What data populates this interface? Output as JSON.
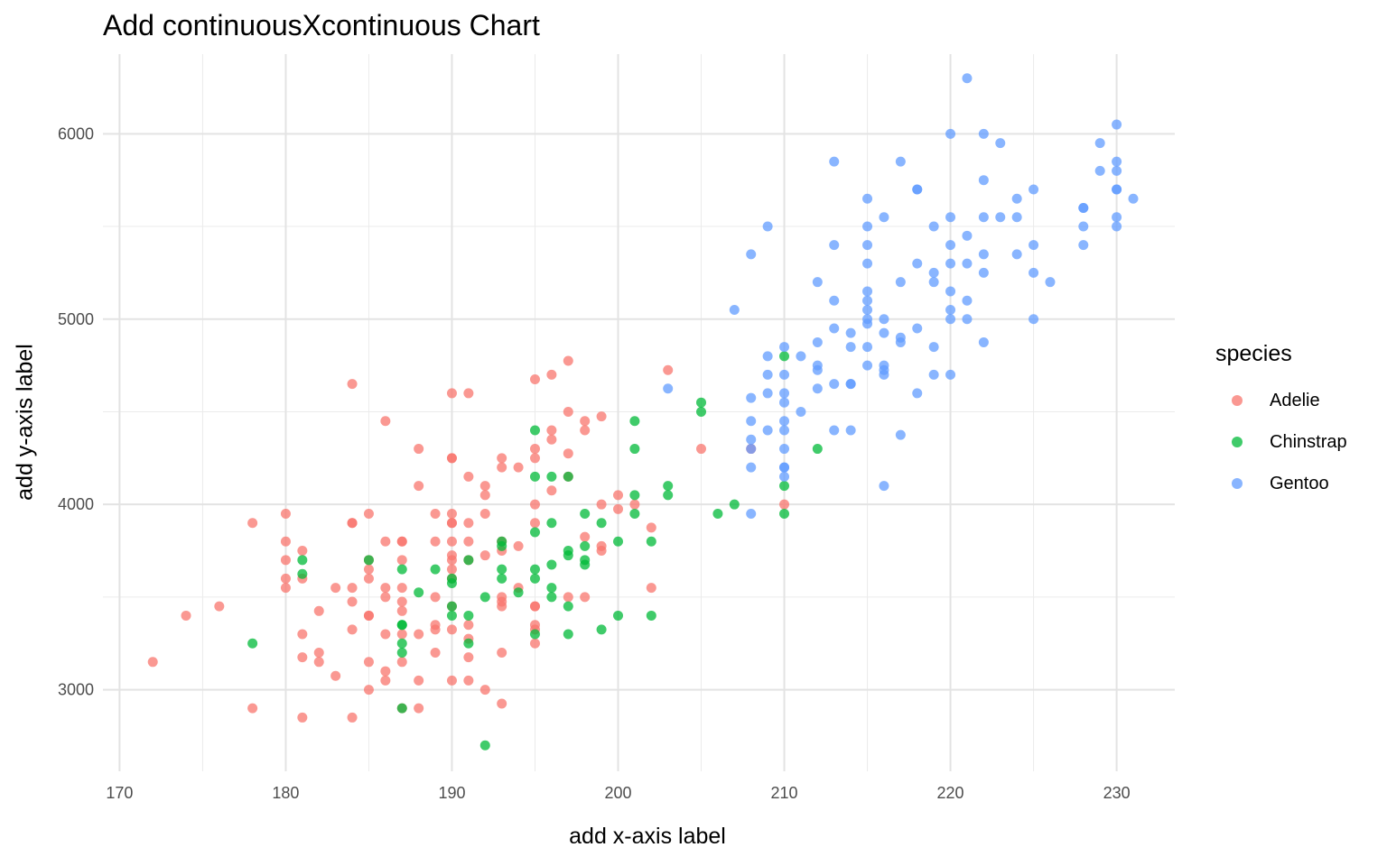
{
  "chart_data": {
    "type": "scatter",
    "title": "Add continuousXcontinuous Chart",
    "xlabel": "add x-axis label",
    "ylabel": "add y-axis label",
    "xlim": [
      169,
      233.5
    ],
    "ylim": [
      2560,
      6430
    ],
    "xticks": [
      170,
      180,
      190,
      200,
      210,
      220,
      230
    ],
    "yticks": [
      3000,
      4000,
      5000,
      6000
    ],
    "grid": true,
    "legend": {
      "title": "species",
      "position": "right"
    },
    "series": [
      {
        "name": "Adelie",
        "color": "#F8766D",
        "points": [
          [
            172,
            3150
          ],
          [
            174,
            3400
          ],
          [
            176,
            3450
          ],
          [
            178,
            3900
          ],
          [
            178,
            2900
          ],
          [
            180,
            3950
          ],
          [
            180,
            3800
          ],
          [
            180,
            3700
          ],
          [
            180,
            3600
          ],
          [
            180,
            3550
          ],
          [
            181,
            3750
          ],
          [
            181,
            3600
          ],
          [
            181,
            3300
          ],
          [
            181,
            3175
          ],
          [
            181,
            2850
          ],
          [
            182,
            3425
          ],
          [
            182,
            3200
          ],
          [
            182,
            3150
          ],
          [
            183,
            3550
          ],
          [
            183,
            3075
          ],
          [
            184,
            4650
          ],
          [
            184,
            3900
          ],
          [
            184,
            3900
          ],
          [
            184,
            3550
          ],
          [
            184,
            3475
          ],
          [
            184,
            3325
          ],
          [
            184,
            2850
          ],
          [
            185,
            3950
          ],
          [
            185,
            3700
          ],
          [
            185,
            3650
          ],
          [
            185,
            3600
          ],
          [
            185,
            3400
          ],
          [
            185,
            3400
          ],
          [
            185,
            3150
          ],
          [
            185,
            3000
          ],
          [
            186,
            4450
          ],
          [
            186,
            3800
          ],
          [
            186,
            3550
          ],
          [
            186,
            3500
          ],
          [
            186,
            3300
          ],
          [
            186,
            3100
          ],
          [
            186,
            3050
          ],
          [
            187,
            3800
          ],
          [
            187,
            3800
          ],
          [
            187,
            3700
          ],
          [
            187,
            3550
          ],
          [
            187,
            3475
          ],
          [
            187,
            3425
          ],
          [
            187,
            3300
          ],
          [
            187,
            3150
          ],
          [
            187,
            2900
          ],
          [
            188,
            4300
          ],
          [
            188,
            4100
          ],
          [
            188,
            3300
          ],
          [
            188,
            3050
          ],
          [
            188,
            2900
          ],
          [
            189,
            3950
          ],
          [
            189,
            3800
          ],
          [
            189,
            3500
          ],
          [
            189,
            3350
          ],
          [
            189,
            3325
          ],
          [
            189,
            3200
          ],
          [
            190,
            4600
          ],
          [
            190,
            4250
          ],
          [
            190,
            4250
          ],
          [
            190,
            3950
          ],
          [
            190,
            3900
          ],
          [
            190,
            3900
          ],
          [
            190,
            3800
          ],
          [
            190,
            3725
          ],
          [
            190,
            3700
          ],
          [
            190,
            3650
          ],
          [
            190,
            3600
          ],
          [
            190,
            3450
          ],
          [
            190,
            3325
          ],
          [
            190,
            3050
          ],
          [
            191,
            4600
          ],
          [
            191,
            4150
          ],
          [
            191,
            3900
          ],
          [
            191,
            3800
          ],
          [
            191,
            3700
          ],
          [
            191,
            3350
          ],
          [
            191,
            3275
          ],
          [
            191,
            3175
          ],
          [
            191,
            3050
          ],
          [
            192,
            4100
          ],
          [
            192,
            4050
          ],
          [
            192,
            3950
          ],
          [
            192,
            3725
          ],
          [
            192,
            3000
          ],
          [
            193,
            4250
          ],
          [
            193,
            4200
          ],
          [
            193,
            3800
          ],
          [
            193,
            3750
          ],
          [
            193,
            3500
          ],
          [
            193,
            3475
          ],
          [
            193,
            3450
          ],
          [
            193,
            3200
          ],
          [
            193,
            2925
          ],
          [
            194,
            4200
          ],
          [
            194,
            3775
          ],
          [
            194,
            3550
          ],
          [
            195,
            4675
          ],
          [
            195,
            4300
          ],
          [
            195,
            4250
          ],
          [
            195,
            4000
          ],
          [
            195,
            3900
          ],
          [
            195,
            3450
          ],
          [
            195,
            3450
          ],
          [
            195,
            3350
          ],
          [
            195,
            3325
          ],
          [
            195,
            3250
          ],
          [
            196,
            4700
          ],
          [
            196,
            4400
          ],
          [
            196,
            4350
          ],
          [
            196,
            4075
          ],
          [
            197,
            4775
          ],
          [
            197,
            4500
          ],
          [
            197,
            4275
          ],
          [
            197,
            4150
          ],
          [
            197,
            3500
          ],
          [
            198,
            4450
          ],
          [
            198,
            4400
          ],
          [
            198,
            3825
          ],
          [
            198,
            3500
          ],
          [
            199,
            4475
          ],
          [
            199,
            4000
          ],
          [
            199,
            3775
          ],
          [
            199,
            3750
          ],
          [
            200,
            4050
          ],
          [
            200,
            3975
          ],
          [
            201,
            4000
          ],
          [
            202,
            3875
          ],
          [
            202,
            3550
          ],
          [
            203,
            4725
          ],
          [
            205,
            4300
          ],
          [
            208,
            4300
          ],
          [
            210,
            4000
          ]
        ]
      },
      {
        "name": "Chinstrap",
        "color": "#00BA38",
        "points": [
          [
            178,
            3250
          ],
          [
            181,
            3700
          ],
          [
            181,
            3625
          ],
          [
            185,
            3700
          ],
          [
            187,
            3650
          ],
          [
            187,
            3350
          ],
          [
            187,
            3350
          ],
          [
            187,
            3250
          ],
          [
            187,
            3200
          ],
          [
            187,
            2900
          ],
          [
            188,
            3525
          ],
          [
            189,
            3650
          ],
          [
            190,
            3600
          ],
          [
            190,
            3575
          ],
          [
            190,
            3450
          ],
          [
            190,
            3400
          ],
          [
            191,
            3700
          ],
          [
            191,
            3400
          ],
          [
            191,
            3250
          ],
          [
            192,
            3500
          ],
          [
            192,
            2700
          ],
          [
            193,
            3800
          ],
          [
            193,
            3775
          ],
          [
            193,
            3650
          ],
          [
            193,
            3600
          ],
          [
            194,
            3525
          ],
          [
            195,
            4400
          ],
          [
            195,
            4150
          ],
          [
            195,
            3850
          ],
          [
            195,
            3650
          ],
          [
            195,
            3600
          ],
          [
            195,
            3300
          ],
          [
            196,
            4150
          ],
          [
            196,
            3900
          ],
          [
            196,
            3675
          ],
          [
            196,
            3550
          ],
          [
            196,
            3500
          ],
          [
            197,
            4150
          ],
          [
            197,
            3750
          ],
          [
            197,
            3725
          ],
          [
            197,
            3450
          ],
          [
            197,
            3300
          ],
          [
            198,
            3950
          ],
          [
            198,
            3775
          ],
          [
            198,
            3700
          ],
          [
            198,
            3675
          ],
          [
            199,
            3900
          ],
          [
            199,
            3325
          ],
          [
            200,
            3800
          ],
          [
            200,
            3400
          ],
          [
            201,
            4450
          ],
          [
            201,
            4300
          ],
          [
            201,
            4050
          ],
          [
            201,
            3950
          ],
          [
            202,
            3800
          ],
          [
            202,
            3400
          ],
          [
            203,
            4100
          ],
          [
            203,
            4050
          ],
          [
            205,
            4550
          ],
          [
            205,
            4500
          ],
          [
            206,
            3950
          ],
          [
            207,
            4000
          ],
          [
            210,
            4800
          ],
          [
            210,
            4100
          ],
          [
            210,
            3950
          ],
          [
            212,
            4300
          ]
        ]
      },
      {
        "name": "Gentoo",
        "color": "#619CFF",
        "points": [
          [
            203,
            4625
          ],
          [
            207,
            5050
          ],
          [
            208,
            5350
          ],
          [
            208,
            4575
          ],
          [
            208,
            4450
          ],
          [
            208,
            4350
          ],
          [
            208,
            4300
          ],
          [
            208,
            4200
          ],
          [
            208,
            3950
          ],
          [
            209,
            5500
          ],
          [
            209,
            4800
          ],
          [
            209,
            4700
          ],
          [
            209,
            4600
          ],
          [
            209,
            4400
          ],
          [
            210,
            4850
          ],
          [
            210,
            4700
          ],
          [
            210,
            4600
          ],
          [
            210,
            4550
          ],
          [
            210,
            4450
          ],
          [
            210,
            4400
          ],
          [
            210,
            4300
          ],
          [
            210,
            4200
          ],
          [
            210,
            4200
          ],
          [
            210,
            4150
          ],
          [
            211,
            4800
          ],
          [
            211,
            4500
          ],
          [
            212,
            5200
          ],
          [
            212,
            4875
          ],
          [
            212,
            4750
          ],
          [
            212,
            4725
          ],
          [
            212,
            4625
          ],
          [
            213,
            5850
          ],
          [
            213,
            5400
          ],
          [
            213,
            5100
          ],
          [
            213,
            4950
          ],
          [
            213,
            4650
          ],
          [
            213,
            4400
          ],
          [
            214,
            4925
          ],
          [
            214,
            4850
          ],
          [
            214,
            4650
          ],
          [
            214,
            4650
          ],
          [
            214,
            4400
          ],
          [
            215,
            5650
          ],
          [
            215,
            5500
          ],
          [
            215,
            5400
          ],
          [
            215,
            5300
          ],
          [
            215,
            5150
          ],
          [
            215,
            5100
          ],
          [
            215,
            5050
          ],
          [
            215,
            5000
          ],
          [
            215,
            4975
          ],
          [
            215,
            4850
          ],
          [
            215,
            4750
          ],
          [
            216,
            5550
          ],
          [
            216,
            5000
          ],
          [
            216,
            4925
          ],
          [
            216,
            4750
          ],
          [
            216,
            4725
          ],
          [
            216,
            4700
          ],
          [
            216,
            4100
          ],
          [
            217,
            5850
          ],
          [
            217,
            5200
          ],
          [
            217,
            4900
          ],
          [
            217,
            4875
          ],
          [
            217,
            4375
          ],
          [
            218,
            5700
          ],
          [
            218,
            5700
          ],
          [
            218,
            5300
          ],
          [
            218,
            4950
          ],
          [
            218,
            4600
          ],
          [
            219,
            5500
          ],
          [
            219,
            5250
          ],
          [
            219,
            5200
          ],
          [
            219,
            4850
          ],
          [
            219,
            4700
          ],
          [
            220,
            6000
          ],
          [
            220,
            5550
          ],
          [
            220,
            5400
          ],
          [
            220,
            5300
          ],
          [
            220,
            5150
          ],
          [
            220,
            5050
          ],
          [
            220,
            5000
          ],
          [
            220,
            4700
          ],
          [
            221,
            6300
          ],
          [
            221,
            5450
          ],
          [
            221,
            5300
          ],
          [
            221,
            5100
          ],
          [
            221,
            5000
          ],
          [
            222,
            6000
          ],
          [
            222,
            5750
          ],
          [
            222,
            5550
          ],
          [
            222,
            5350
          ],
          [
            222,
            5250
          ],
          [
            222,
            4875
          ],
          [
            223,
            5950
          ],
          [
            223,
            5550
          ],
          [
            224,
            5650
          ],
          [
            224,
            5550
          ],
          [
            224,
            5350
          ],
          [
            225,
            5700
          ],
          [
            225,
            5400
          ],
          [
            225,
            5250
          ],
          [
            225,
            5000
          ],
          [
            226,
            5200
          ],
          [
            228,
            5600
          ],
          [
            228,
            5600
          ],
          [
            228,
            5500
          ],
          [
            228,
            5400
          ],
          [
            229,
            5950
          ],
          [
            229,
            5800
          ],
          [
            230,
            6050
          ],
          [
            230,
            5850
          ],
          [
            230,
            5800
          ],
          [
            230,
            5700
          ],
          [
            230,
            5700
          ],
          [
            230,
            5550
          ],
          [
            230,
            5500
          ],
          [
            231,
            5650
          ]
        ]
      }
    ]
  }
}
